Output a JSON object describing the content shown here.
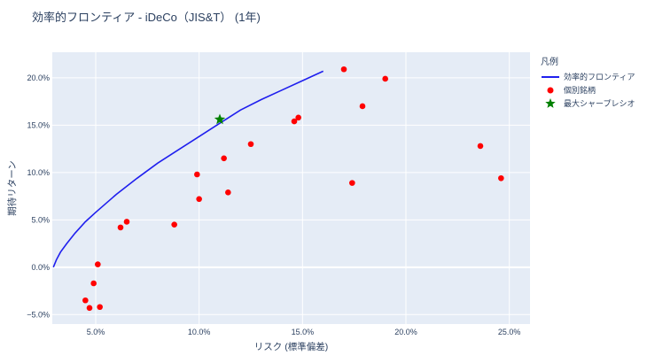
{
  "chart_data": {
    "type": "scatter",
    "title": "効率的フロンティア - iDeCo（JIS&T） (1年)",
    "xlabel": "リスク (標準偏差)",
    "ylabel": "期待リターン",
    "xlim": [
      0.029,
      0.26
    ],
    "ylim": [
      -0.06,
      0.227
    ],
    "x_ticks": [
      0.05,
      0.1,
      0.15,
      0.2,
      0.25
    ],
    "x_tick_labels": [
      "5.0%",
      "10.0%",
      "15.0%",
      "20.0%",
      "25.0%"
    ],
    "y_ticks": [
      -0.05,
      0.0,
      0.05,
      0.1,
      0.15,
      0.2
    ],
    "y_tick_labels": [
      "−5.0%",
      "0.0%",
      "5.0%",
      "10.0%",
      "15.0%",
      "20.0%"
    ],
    "grid": true,
    "legend_position": "right",
    "legend_title": "凡例",
    "series": [
      {
        "name": "効率的フロンティア",
        "type": "line",
        "color": "#1f1fee",
        "x": [
          0.0295,
          0.031,
          0.033,
          0.036,
          0.04,
          0.045,
          0.05,
          0.06,
          0.07,
          0.08,
          0.09,
          0.1,
          0.11,
          0.12,
          0.13,
          0.14,
          0.15,
          0.16
        ],
        "y": [
          0.0,
          0.008,
          0.016,
          0.025,
          0.036,
          0.048,
          0.058,
          0.077,
          0.094,
          0.11,
          0.124,
          0.138,
          0.152,
          0.166,
          0.177,
          0.187,
          0.197,
          0.207
        ]
      },
      {
        "name": "個別銘柄",
        "type": "scatter",
        "color": "#ff0000",
        "x": [
          0.045,
          0.047,
          0.049,
          0.051,
          0.052,
          0.062,
          0.065,
          0.088,
          0.099,
          0.1,
          0.112,
          0.114,
          0.125,
          0.146,
          0.148,
          0.17,
          0.174,
          0.179,
          0.19,
          0.236,
          0.246
        ],
        "y": [
          -0.035,
          -0.043,
          -0.017,
          0.003,
          -0.042,
          0.042,
          0.048,
          0.045,
          0.098,
          0.072,
          0.115,
          0.079,
          0.13,
          0.154,
          0.158,
          0.209,
          0.089,
          0.17,
          0.199,
          0.128,
          0.094
        ]
      },
      {
        "name": "最大シャープレシオ",
        "type": "scatter",
        "marker": "star",
        "color": "#008000",
        "x": [
          0.11
        ],
        "y": [
          0.156
        ]
      }
    ]
  }
}
